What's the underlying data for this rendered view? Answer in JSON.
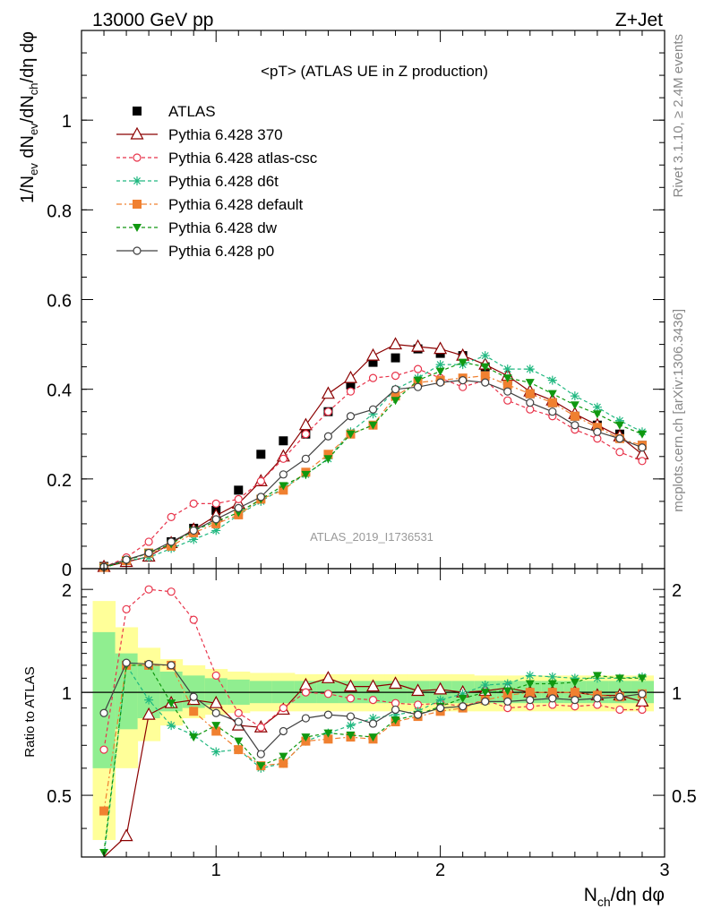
{
  "header": {
    "left": "13000 GeV pp",
    "right": "Z+Jet"
  },
  "main": {
    "title": "<pT> (ATLAS UE in Z production)",
    "ylabel_parts": [
      "1/N",
      "ev",
      " dN",
      "ev",
      "/dN",
      "ch",
      "/dη dφ"
    ],
    "watermark": "ATLAS_2019_I1736531"
  },
  "ratio": {
    "ylabel": "Ratio to ATLAS"
  },
  "xaxis": {
    "label_parts": [
      "N",
      "ch",
      "/dη dφ"
    ]
  },
  "side": {
    "top": "Rivet 3.1.10, ≥ 2.4M events",
    "bottom": "mcplots.cern.ch [arXiv:1306.3436]"
  },
  "chart_data": [
    {
      "type": "line",
      "panel": "main",
      "title": "<pT> (ATLAS UE in Z production)",
      "xlabel": "Nch/dη dφ",
      "ylabel": "1/Nev dNev/dNch/dη dφ",
      "xlim": [
        0.4,
        3.0
      ],
      "ylim": [
        0,
        1.2
      ],
      "yticks": [
        0,
        0.2,
        0.4,
        0.6,
        0.8,
        1
      ],
      "ytick_labels": [
        "0",
        "0.2",
        "0.4",
        "0.6",
        "0.8",
        "1"
      ],
      "grid": false,
      "legend_position": "top-left",
      "x": [
        0.5,
        0.6,
        0.7,
        0.8,
        0.9,
        1.0,
        1.1,
        1.2,
        1.3,
        1.4,
        1.5,
        1.6,
        1.7,
        1.8,
        1.9,
        2.0,
        2.1,
        2.2,
        2.3,
        2.4,
        2.5,
        2.6,
        2.7,
        2.8,
        2.9
      ],
      "series": [
        {
          "name": "ATLAS",
          "style": "data",
          "color": "#000000",
          "marker": "square",
          "values": [
            0.005,
            0.015,
            0.03,
            0.06,
            0.09,
            0.13,
            0.175,
            0.255,
            0.285,
            0.3,
            0.35,
            0.41,
            0.46,
            0.47,
            0.49,
            0.48,
            0.475,
            0.45,
            0.42,
            0.39,
            0.37,
            0.34,
            0.32,
            0.3,
            0.275
          ]
        },
        {
          "name": "Pythia 6.428 370",
          "color": "#8b0000",
          "marker": "triangle",
          "dash": "",
          "values": [
            0.004,
            0.015,
            0.027,
            0.057,
            0.087,
            0.118,
            0.145,
            0.195,
            0.25,
            0.32,
            0.39,
            0.425,
            0.475,
            0.5,
            0.495,
            0.49,
            0.475,
            0.455,
            0.43,
            0.395,
            0.375,
            0.345,
            0.32,
            0.295,
            0.255
          ]
        },
        {
          "name": "Pythia 6.428 atlas-csc",
          "color": "#e8334a",
          "marker": "circle",
          "dash": "4,3",
          "values": [
            0.003,
            0.025,
            0.06,
            0.115,
            0.145,
            0.145,
            0.155,
            0.195,
            0.245,
            0.3,
            0.35,
            0.395,
            0.425,
            0.43,
            0.445,
            0.425,
            0.405,
            0.42,
            0.375,
            0.355,
            0.34,
            0.31,
            0.29,
            0.26,
            0.24
          ]
        },
        {
          "name": "Pythia 6.428 d6t",
          "color": "#20b880",
          "marker": "star",
          "dash": "4,3",
          "values": [
            0.002,
            0.018,
            0.025,
            0.045,
            0.065,
            0.085,
            0.12,
            0.15,
            0.18,
            0.21,
            0.245,
            0.305,
            0.345,
            0.4,
            0.425,
            0.455,
            0.455,
            0.475,
            0.445,
            0.445,
            0.42,
            0.385,
            0.36,
            0.33,
            0.305
          ]
        },
        {
          "name": "Pythia 6.428 default",
          "color": "#f08030",
          "marker": "square",
          "dash": "6,3,2,3",
          "values": [
            0.003,
            0.018,
            0.035,
            0.05,
            0.08,
            0.1,
            0.12,
            0.155,
            0.175,
            0.215,
            0.255,
            0.3,
            0.32,
            0.385,
            0.415,
            0.42,
            0.425,
            0.43,
            0.41,
            0.39,
            0.37,
            0.34,
            0.315,
            0.29,
            0.275
          ]
        },
        {
          "name": "Pythia 6.428 dw",
          "color": "#109810",
          "marker": "triangle-down",
          "dash": "4,3",
          "values": [
            0.002,
            0.018,
            0.035,
            0.055,
            0.085,
            0.105,
            0.125,
            0.155,
            0.185,
            0.21,
            0.245,
            0.3,
            0.32,
            0.375,
            0.42,
            0.44,
            0.46,
            0.45,
            0.425,
            0.415,
            0.39,
            0.365,
            0.345,
            0.32,
            0.3
          ]
        },
        {
          "name": "Pythia 6.428 p0",
          "color": "#404040",
          "marker": "circle",
          "dash": "",
          "values": [
            0.004,
            0.02,
            0.035,
            0.06,
            0.085,
            0.11,
            0.135,
            0.16,
            0.21,
            0.245,
            0.295,
            0.34,
            0.355,
            0.4,
            0.405,
            0.415,
            0.42,
            0.415,
            0.395,
            0.37,
            0.35,
            0.32,
            0.305,
            0.29,
            0.27
          ]
        }
      ]
    },
    {
      "type": "line",
      "panel": "ratio",
      "ylabel": "Ratio to ATLAS",
      "xlabel": "Nch/dη dφ",
      "xlim": [
        0.4,
        3.0
      ],
      "ylim": [
        0.33,
        2.3
      ],
      "log_y": true,
      "xticks": [
        1,
        2,
        3
      ],
      "xtick_labels": [
        "1",
        "2",
        "3"
      ],
      "yticks": [
        0.5,
        1,
        2
      ],
      "ytick_labels": [
        "0.5",
        "1",
        "2"
      ],
      "bands": {
        "x_edges": [
          0.45,
          0.55,
          0.65,
          0.75,
          0.85,
          0.95,
          1.05,
          1.15,
          1.25,
          1.35,
          1.45,
          1.55,
          1.65,
          1.75,
          1.85,
          1.95,
          2.05,
          2.15,
          2.25,
          2.35,
          2.45,
          2.55,
          2.65,
          2.75,
          2.85,
          2.95
        ],
        "yellow_low": [
          0.37,
          0.6,
          0.72,
          0.8,
          0.84,
          0.86,
          0.87,
          0.88,
          0.88,
          0.88,
          0.88,
          0.88,
          0.88,
          0.88,
          0.88,
          0.88,
          0.88,
          0.88,
          0.88,
          0.88,
          0.88,
          0.88,
          0.88,
          0.88,
          0.88
        ],
        "yellow_high": [
          1.85,
          1.55,
          1.35,
          1.25,
          1.2,
          1.17,
          1.15,
          1.14,
          1.14,
          1.13,
          1.13,
          1.13,
          1.13,
          1.13,
          1.13,
          1.13,
          1.13,
          1.12,
          1.12,
          1.12,
          1.12,
          1.12,
          1.12,
          1.12,
          1.12
        ],
        "green_low": [
          0.6,
          0.78,
          0.84,
          0.88,
          0.9,
          0.92,
          0.92,
          0.93,
          0.93,
          0.93,
          0.93,
          0.93,
          0.93,
          0.93,
          0.93,
          0.93,
          0.93,
          0.93,
          0.93,
          0.93,
          0.93,
          0.93,
          0.93,
          0.93,
          0.93
        ],
        "green_high": [
          1.5,
          1.3,
          1.2,
          1.15,
          1.12,
          1.1,
          1.09,
          1.08,
          1.08,
          1.08,
          1.08,
          1.08,
          1.08,
          1.08,
          1.08,
          1.08,
          1.08,
          1.08,
          1.08,
          1.08,
          1.08,
          1.08,
          1.08,
          1.08,
          1.08
        ]
      },
      "x": [
        0.5,
        0.6,
        0.7,
        0.8,
        0.9,
        1.0,
        1.1,
        1.2,
        1.3,
        1.4,
        1.5,
        1.6,
        1.7,
        1.8,
        1.9,
        2.0,
        2.1,
        2.2,
        2.3,
        2.4,
        2.5,
        2.6,
        2.7,
        2.8,
        2.9
      ],
      "series": [
        {
          "name": "Pythia 6.428 370",
          "color": "#8b0000",
          "marker": "triangle",
          "dash": "",
          "values": [
            0.27,
            0.38,
            0.86,
            0.93,
            0.95,
            0.93,
            0.8,
            0.79,
            0.89,
            1.05,
            1.1,
            1.04,
            1.04,
            1.06,
            1.01,
            1.02,
            1.0,
            1.01,
            1.03,
            1.0,
            1.0,
            1.0,
            0.98,
            0.98,
            0.94
          ]
        },
        {
          "name": "Pythia 6.428 atlas-csc",
          "color": "#e8334a",
          "marker": "circle",
          "dash": "4,3",
          "values": [
            0.68,
            1.75,
            2.0,
            1.97,
            1.63,
            1.12,
            0.87,
            0.79,
            0.9,
            1.0,
            0.99,
            0.96,
            0.95,
            0.93,
            0.92,
            0.93,
            0.91,
            0.95,
            0.9,
            0.91,
            0.92,
            0.91,
            0.92,
            0.89,
            0.89
          ]
        },
        {
          "name": "Pythia 6.428 d6t",
          "color": "#20b880",
          "marker": "star",
          "dash": "4,3",
          "values": [
            0.3,
            1.2,
            0.95,
            0.8,
            0.75,
            0.67,
            0.68,
            0.6,
            0.62,
            0.72,
            0.76,
            0.8,
            0.84,
            0.86,
            0.88,
            0.95,
            0.99,
            1.05,
            1.06,
            1.12,
            1.11,
            1.1,
            1.1,
            1.1,
            1.11
          ]
        },
        {
          "name": "Pythia 6.428 default",
          "color": "#f08030",
          "marker": "square",
          "dash": "6,3,2,3",
          "values": [
            0.45,
            1.2,
            1.2,
            1.2,
            0.88,
            0.77,
            0.68,
            0.61,
            0.62,
            0.72,
            0.73,
            0.74,
            0.73,
            0.82,
            0.85,
            0.88,
            0.9,
            0.95,
            0.98,
            1.0,
            1.0,
            1.0,
            0.98,
            0.97,
            0.99
          ]
        },
        {
          "name": "Pythia 6.428 dw",
          "color": "#109810",
          "marker": "triangle-down",
          "dash": "4,3",
          "values": [
            0.34,
            1.2,
            1.2,
            0.93,
            0.74,
            0.8,
            0.72,
            0.61,
            0.65,
            0.74,
            0.76,
            0.75,
            0.74,
            0.83,
            0.86,
            0.91,
            0.96,
            1.0,
            1.01,
            1.06,
            1.06,
            1.07,
            1.12,
            1.1,
            1.1
          ]
        },
        {
          "name": "Pythia 6.428 p0",
          "color": "#404040",
          "marker": "circle",
          "dash": "",
          "values": [
            0.87,
            1.22,
            1.21,
            1.2,
            0.97,
            0.87,
            0.82,
            0.66,
            0.77,
            0.84,
            0.86,
            0.85,
            0.81,
            0.89,
            0.86,
            0.9,
            0.91,
            0.94,
            0.94,
            0.95,
            0.96,
            0.95,
            0.96,
            0.97,
            0.99
          ]
        }
      ]
    }
  ]
}
